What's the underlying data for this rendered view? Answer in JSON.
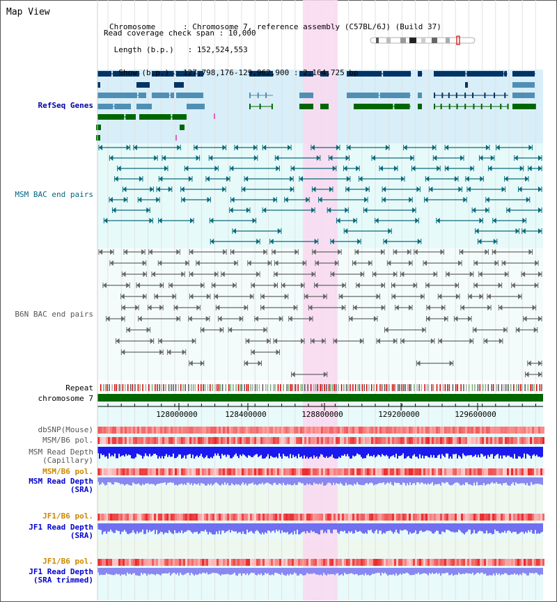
{
  "app_title": "Map View",
  "header": {
    "chromosome_key": "Chromosome",
    "chromosome_val": "Chromosome 7, reference assembly (C57BL/6J) (Build 37)",
    "length_key": "Length (b.p.)",
    "length_val": "152,524,553",
    "show_key": "Show (b.p.)",
    "show_val": "127,798,176-129,962,900 : 2,164,725 bp",
    "coverage_key": "Read coverage check span",
    "coverage_val": "10,000"
  },
  "tracks": {
    "refseq": "RefSeq Genes",
    "msm_bac": "MSM BAC end pairs",
    "b6n_bac": "B6N BAC end pairs",
    "repeat": "Repeat",
    "chromosome": "chromosome 7",
    "dbsnp": "dbSNP(Mouse)",
    "msm_b6_pol": "MSM/B6 pol.",
    "msm_depth_cap": "MSM Read Depth\n(Capillary)",
    "msm_b6_pol2": "MSM/B6 pol.",
    "msm_depth_sra": "MSM Read Depth\n(SRA)",
    "jf1_b6_pol": "JF1/B6 pol.",
    "jf1_depth_sra": "JF1 Read Depth\n(SRA)",
    "jf1_b6_pol2": "JF1/B6 pol.",
    "jf1_depth_trim": "JF1 Read Depth\n(SRA trimmed)"
  },
  "axis_ticks": [
    "128000000",
    "128400000",
    "128800000",
    "129200000",
    "129600000"
  ],
  "colors": {
    "refseq_dark": "#003366",
    "refseq_mid": "#4f8fb4",
    "refseq_green": "#006600",
    "msm_teal": "#0a6a7a",
    "b6n_gray": "#666666",
    "highlight": "#f9d8f0",
    "chrom_green": "#006600",
    "label_blue": "#0000cc",
    "label_teal": "#006680",
    "label_orange": "#cc8800",
    "label_gray": "#555555"
  }
}
